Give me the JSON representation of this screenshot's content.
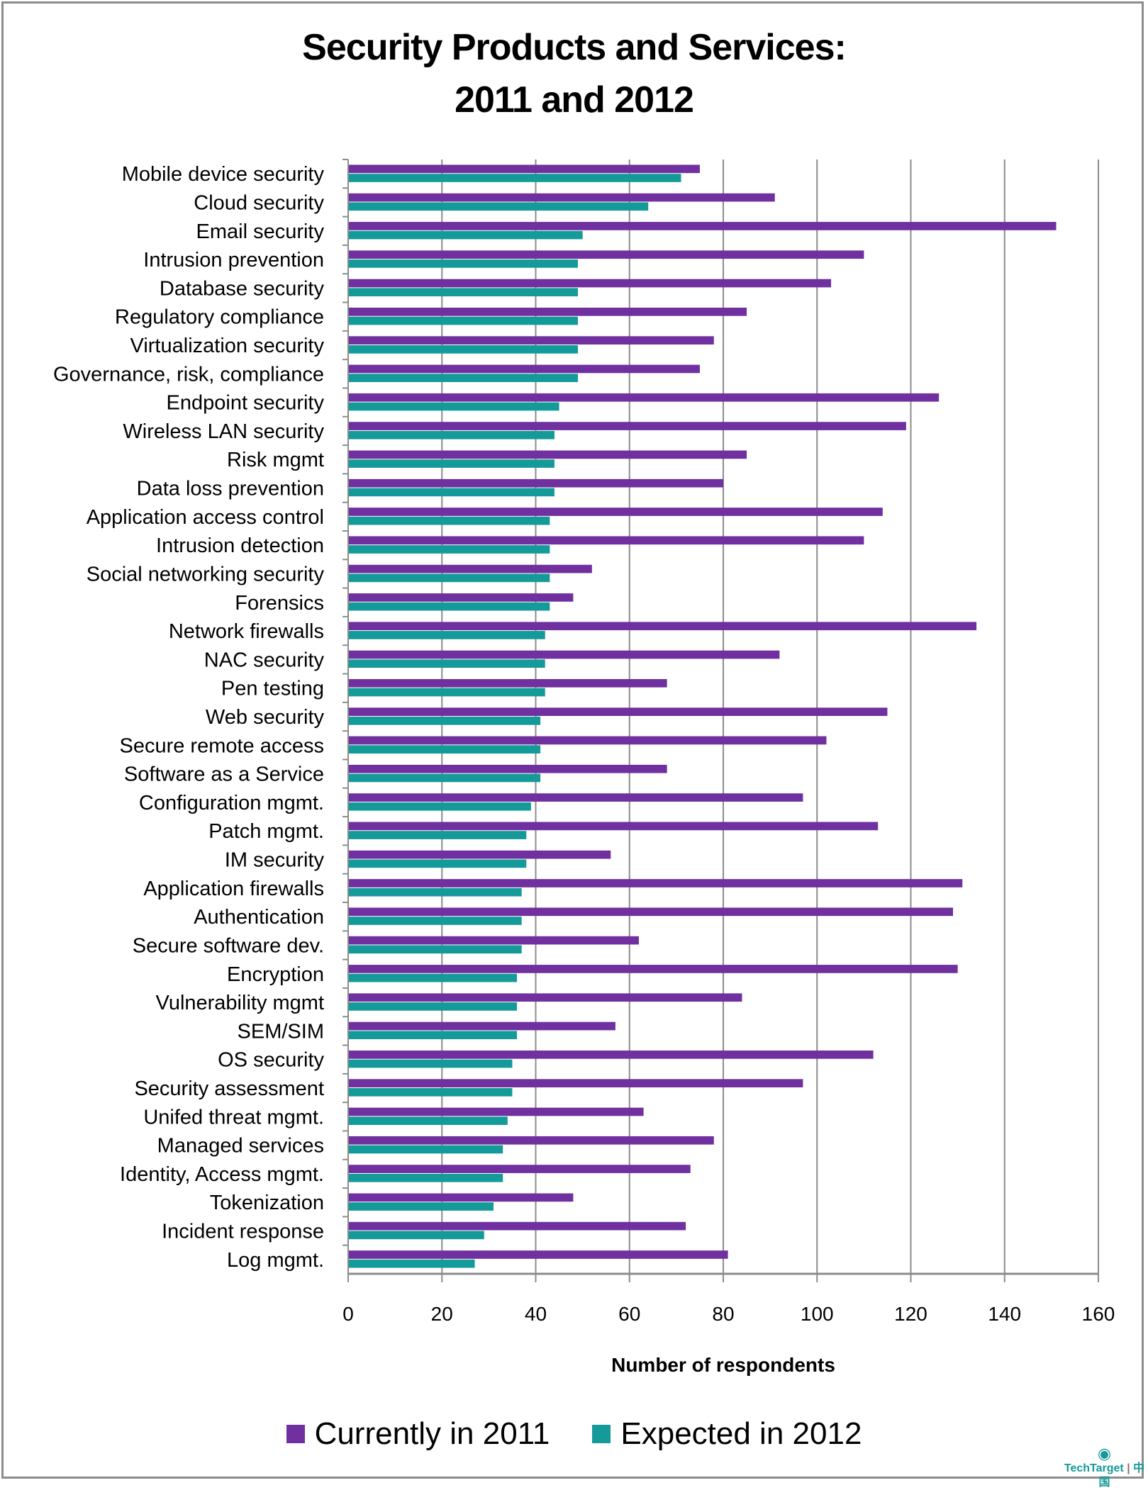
{
  "chart_data": {
    "type": "bar",
    "orientation": "horizontal",
    "title": "Security Products and Services:\n2011 and 2012",
    "title_lines": [
      "Security Products and Services:",
      "2011 and 2012"
    ],
    "xlabel": "Number of respondents",
    "ylabel": "",
    "xlim": [
      0,
      160
    ],
    "xticks": [
      0,
      20,
      40,
      60,
      80,
      100,
      120,
      140,
      160
    ],
    "grid": true,
    "legend_position": "bottom",
    "categories": [
      "Mobile device security",
      "Cloud security",
      "Email security",
      "Intrusion prevention",
      "Database security",
      "Regulatory compliance",
      "Virtualization security",
      "Governance, risk, compliance",
      "Endpoint security",
      "Wireless LAN security",
      "Risk mgmt",
      "Data loss prevention",
      "Application access control",
      "Intrusion detection",
      "Social networking security",
      "Forensics",
      "Network firewalls",
      "NAC security",
      "Pen testing",
      "Web security",
      "Secure remote access",
      "Software as a Service",
      "Configuration mgmt.",
      "Patch mgmt.",
      "IM security",
      "Application firewalls",
      "Authentication",
      "Secure software dev.",
      "Encryption",
      "Vulnerability mgmt",
      "SEM/SIM",
      "OS security",
      "Security assessment",
      "Unifed threat mgmt.",
      "Managed services",
      "Identity, Access mgmt.",
      "Tokenization",
      "Incident response",
      "Log mgmt."
    ],
    "series": [
      {
        "name": "Currently in 2011",
        "color": "#7030a0",
        "values": [
          75,
          91,
          151,
          110,
          103,
          85,
          78,
          75,
          126,
          119,
          85,
          80,
          114,
          110,
          52,
          48,
          134,
          92,
          68,
          115,
          102,
          68,
          97,
          113,
          56,
          131,
          129,
          62,
          130,
          84,
          57,
          112,
          97,
          63,
          78,
          73,
          48,
          72,
          81
        ]
      },
      {
        "name": "Expected in 2012",
        "color": "#149a98",
        "values": [
          71,
          64,
          50,
          49,
          49,
          49,
          49,
          49,
          45,
          44,
          44,
          44,
          43,
          43,
          43,
          43,
          42,
          42,
          42,
          41,
          41,
          41,
          39,
          38,
          38,
          37,
          37,
          37,
          36,
          36,
          36,
          35,
          35,
          34,
          33,
          33,
          31,
          29,
          27
        ]
      }
    ]
  },
  "legend": {
    "items": [
      {
        "label": "Currently in 2011",
        "color": "#7030a0"
      },
      {
        "label": "Expected in 2012",
        "color": "#149a98"
      }
    ]
  },
  "logo": {
    "brand": "TechTarget",
    "suffix": "中国",
    "icon": "eye-icon"
  },
  "colors": {
    "gridline": "#8c8c8c",
    "frame": "#8c8c8c"
  }
}
